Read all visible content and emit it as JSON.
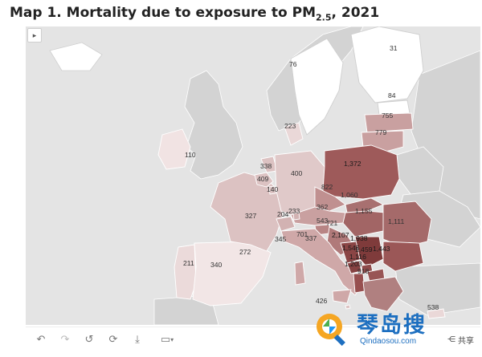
{
  "title": {
    "main": "Map 1. Mortality due to exposure to PM",
    "sub": "2.5",
    "year": ", 2021"
  },
  "map": {
    "legend": "",
    "colors": {
      "land": "#d3d3d3",
      "sea": "#e4e4e4",
      "border": "#ffffff",
      "low": "#efdede",
      "mid": "#c9a3a3",
      "high": "#9b5a5a",
      "max": "#7a3535"
    },
    "regions": [
      {
        "id": "iceland",
        "value": ""
      },
      {
        "id": "ireland",
        "value": "110"
      },
      {
        "id": "portugal",
        "value": "211"
      },
      {
        "id": "spain",
        "value": "340"
      },
      {
        "id": "france",
        "value": "327"
      },
      {
        "id": "belgium",
        "value": "409"
      },
      {
        "id": "netherlands",
        "value": "338"
      },
      {
        "id": "luxembourg",
        "value": "140"
      },
      {
        "id": "germany",
        "value": "400"
      },
      {
        "id": "denmark",
        "value": "223"
      },
      {
        "id": "sweden",
        "value": "76"
      },
      {
        "id": "finland",
        "value": "31"
      },
      {
        "id": "estonia",
        "value": "84"
      },
      {
        "id": "latvia",
        "value": "755"
      },
      {
        "id": "lithuania",
        "value": "779"
      },
      {
        "id": "poland",
        "value": "1,372"
      },
      {
        "id": "czechia",
        "value": "822"
      },
      {
        "id": "slovakia",
        "value": "1,060"
      },
      {
        "id": "austria",
        "value": "362"
      },
      {
        "id": "hungary",
        "value": "1,155"
      },
      {
        "id": "romania",
        "value": "1,111"
      },
      {
        "id": "switzerland",
        "value": "204"
      },
      {
        "id": "liechtenstein",
        "value": "233"
      },
      {
        "id": "slovenia",
        "value": "543"
      },
      {
        "id": "croatia",
        "value": "721"
      },
      {
        "id": "italy",
        "value": "345"
      },
      {
        "id": "italy-north",
        "value": "701"
      },
      {
        "id": "sanmarino",
        "value": "337"
      },
      {
        "id": "bosnia",
        "value": "2,107"
      },
      {
        "id": "serbia",
        "value": "1,938"
      },
      {
        "id": "montenegro",
        "value": "1,545"
      },
      {
        "id": "kosovo",
        "value": "1,459"
      },
      {
        "id": "bulgaria",
        "value": "1,443"
      },
      {
        "id": "albania",
        "value": "1,203"
      },
      {
        "id": "northmacedonia",
        "value": "1,116"
      },
      {
        "id": "greece",
        "value": "918"
      },
      {
        "id": "malta",
        "value": "426"
      },
      {
        "id": "cyprus",
        "value": "538"
      },
      {
        "id": "monaco",
        "value": "272"
      }
    ]
  },
  "toolbar": {
    "undo": "↶",
    "redo": "↷",
    "revert": "↺",
    "refresh": "⟳",
    "download": "⤓",
    "pause": "▭",
    "share": "共享"
  },
  "watermark": {
    "cn": "琴岛搜",
    "url": "Qindaosou.com"
  }
}
